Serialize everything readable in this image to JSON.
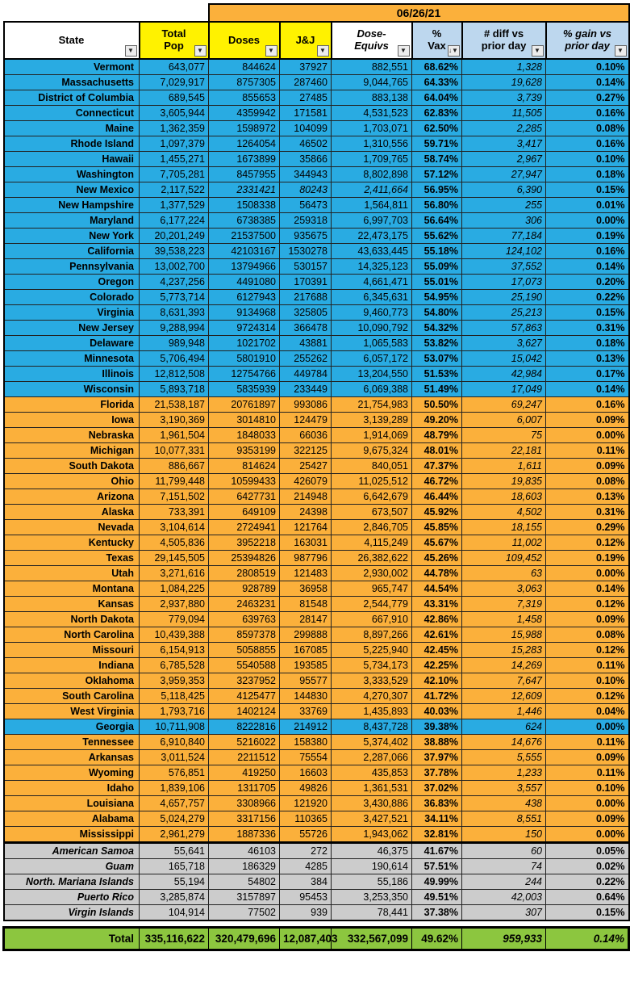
{
  "date_header": "06/26/21",
  "icons": {
    "filter": "▼",
    "filter_sorted": "↓▼"
  },
  "colors": {
    "blue": "#29ABE2",
    "orange": "#FBB03B",
    "band": "#FBB03B",
    "yellow": "#FFF200",
    "lightblue": "#BDD7EE",
    "gray": "#CCCCCC",
    "green": "#8CC63F"
  },
  "columns": [
    {
      "key": "state",
      "label": "State",
      "bg": "white"
    },
    {
      "key": "pop",
      "label": "Total\nPop",
      "bg": "yellow"
    },
    {
      "key": "doses",
      "label": "Doses",
      "bg": "yellow"
    },
    {
      "key": "jj",
      "label": "J&J",
      "bg": "yellow"
    },
    {
      "key": "equivs",
      "label": "Dose-\nEquivs",
      "bg": "white",
      "italic": true
    },
    {
      "key": "pct",
      "label": "%\nVax",
      "bg": "lightblue",
      "sorted": true
    },
    {
      "key": "diff",
      "label": "# diff vs\nprior day",
      "bg": "lightblue"
    },
    {
      "key": "gain",
      "label": "% gain vs\nprior day",
      "bg": "lightblue",
      "italic": true
    }
  ],
  "rows": [
    {
      "state": "Vermont",
      "pop": "643,077",
      "doses": "844624",
      "jj": "37927",
      "equivs": "882,551",
      "pct": "68.62%",
      "diff": "1,328",
      "gain": "0.10%",
      "group": "blue"
    },
    {
      "state": "Massachusetts",
      "pop": "7,029,917",
      "doses": "8757305",
      "jj": "287460",
      "equivs": "9,044,765",
      "pct": "64.33%",
      "diff": "19,628",
      "gain": "0.14%",
      "group": "blue"
    },
    {
      "state": "District of Columbia",
      "pop": "689,545",
      "doses": "855653",
      "jj": "27485",
      "equivs": "883,138",
      "pct": "64.04%",
      "diff": "3,739",
      "gain": "0.27%",
      "group": "blue"
    },
    {
      "state": "Connecticut",
      "pop": "3,605,944",
      "doses": "4359942",
      "jj": "171581",
      "equivs": "4,531,523",
      "pct": "62.83%",
      "diff": "11,505",
      "gain": "0.16%",
      "group": "blue"
    },
    {
      "state": "Maine",
      "pop": "1,362,359",
      "doses": "1598972",
      "jj": "104099",
      "equivs": "1,703,071",
      "pct": "62.50%",
      "diff": "2,285",
      "gain": "0.08%",
      "group": "blue"
    },
    {
      "state": "Rhode Island",
      "pop": "1,097,379",
      "doses": "1264054",
      "jj": "46502",
      "equivs": "1,310,556",
      "pct": "59.71%",
      "diff": "3,417",
      "gain": "0.16%",
      "group": "blue"
    },
    {
      "state": "Hawaii",
      "pop": "1,455,271",
      "doses": "1673899",
      "jj": "35866",
      "equivs": "1,709,765",
      "pct": "58.74%",
      "diff": "2,967",
      "gain": "0.10%",
      "group": "blue"
    },
    {
      "state": "Washington",
      "pop": "7,705,281",
      "doses": "8457955",
      "jj": "344943",
      "equivs": "8,802,898",
      "pct": "57.12%",
      "diff": "27,947",
      "gain": "0.18%",
      "group": "blue"
    },
    {
      "state": "New Mexico",
      "pop": "2,117,522",
      "doses": "2331421",
      "jj": "80243",
      "equivs": "2,411,664",
      "pct": "56.95%",
      "diff": "6,390",
      "gain": "0.15%",
      "group": "blue",
      "italic_values": true
    },
    {
      "state": "New Hampshire",
      "pop": "1,377,529",
      "doses": "1508338",
      "jj": "56473",
      "equivs": "1,564,811",
      "pct": "56.80%",
      "diff": "255",
      "gain": "0.01%",
      "group": "blue"
    },
    {
      "state": "Maryland",
      "pop": "6,177,224",
      "doses": "6738385",
      "jj": "259318",
      "equivs": "6,997,703",
      "pct": "56.64%",
      "diff": "306",
      "gain": "0.00%",
      "group": "blue"
    },
    {
      "state": "New York",
      "pop": "20,201,249",
      "doses": "21537500",
      "jj": "935675",
      "equivs": "22,473,175",
      "pct": "55.62%",
      "diff": "77,184",
      "gain": "0.19%",
      "group": "blue"
    },
    {
      "state": "California",
      "pop": "39,538,223",
      "doses": "42103167",
      "jj": "1530278",
      "equivs": "43,633,445",
      "pct": "55.18%",
      "diff": "124,102",
      "gain": "0.16%",
      "group": "blue"
    },
    {
      "state": "Pennsylvania",
      "pop": "13,002,700",
      "doses": "13794966",
      "jj": "530157",
      "equivs": "14,325,123",
      "pct": "55.09%",
      "diff": "37,552",
      "gain": "0.14%",
      "group": "blue"
    },
    {
      "state": "Oregon",
      "pop": "4,237,256",
      "doses": "4491080",
      "jj": "170391",
      "equivs": "4,661,471",
      "pct": "55.01%",
      "diff": "17,073",
      "gain": "0.20%",
      "group": "blue"
    },
    {
      "state": "Colorado",
      "pop": "5,773,714",
      "doses": "6127943",
      "jj": "217688",
      "equivs": "6,345,631",
      "pct": "54.95%",
      "diff": "25,190",
      "gain": "0.22%",
      "group": "blue"
    },
    {
      "state": "Virginia",
      "pop": "8,631,393",
      "doses": "9134968",
      "jj": "325805",
      "equivs": "9,460,773",
      "pct": "54.80%",
      "diff": "25,213",
      "gain": "0.15%",
      "group": "blue"
    },
    {
      "state": "New Jersey",
      "pop": "9,288,994",
      "doses": "9724314",
      "jj": "366478",
      "equivs": "10,090,792",
      "pct": "54.32%",
      "diff": "57,863",
      "gain": "0.31%",
      "group": "blue"
    },
    {
      "state": "Delaware",
      "pop": "989,948",
      "doses": "1021702",
      "jj": "43881",
      "equivs": "1,065,583",
      "pct": "53.82%",
      "diff": "3,627",
      "gain": "0.18%",
      "group": "blue"
    },
    {
      "state": "Minnesota",
      "pop": "5,706,494",
      "doses": "5801910",
      "jj": "255262",
      "equivs": "6,057,172",
      "pct": "53.07%",
      "diff": "15,042",
      "gain": "0.13%",
      "group": "blue"
    },
    {
      "state": "Illinois",
      "pop": "12,812,508",
      "doses": "12754766",
      "jj": "449784",
      "equivs": "13,204,550",
      "pct": "51.53%",
      "diff": "42,984",
      "gain": "0.17%",
      "group": "blue"
    },
    {
      "state": "Wisconsin",
      "pop": "5,893,718",
      "doses": "5835939",
      "jj": "233449",
      "equivs": "6,069,388",
      "pct": "51.49%",
      "diff": "17,049",
      "gain": "0.14%",
      "group": "blue"
    },
    {
      "state": "Florida",
      "pop": "21,538,187",
      "doses": "20761897",
      "jj": "993086",
      "equivs": "21,754,983",
      "pct": "50.50%",
      "diff": "69,247",
      "gain": "0.16%",
      "group": "orange"
    },
    {
      "state": "Iowa",
      "pop": "3,190,369",
      "doses": "3014810",
      "jj": "124479",
      "equivs": "3,139,289",
      "pct": "49.20%",
      "diff": "6,007",
      "gain": "0.09%",
      "group": "orange"
    },
    {
      "state": "Nebraska",
      "pop": "1,961,504",
      "doses": "1848033",
      "jj": "66036",
      "equivs": "1,914,069",
      "pct": "48.79%",
      "diff": "75",
      "gain": "0.00%",
      "group": "orange"
    },
    {
      "state": "Michigan",
      "pop": "10,077,331",
      "doses": "9353199",
      "jj": "322125",
      "equivs": "9,675,324",
      "pct": "48.01%",
      "diff": "22,181",
      "gain": "0.11%",
      "group": "orange"
    },
    {
      "state": "South Dakota",
      "pop": "886,667",
      "doses": "814624",
      "jj": "25427",
      "equivs": "840,051",
      "pct": "47.37%",
      "diff": "1,611",
      "gain": "0.09%",
      "group": "orange"
    },
    {
      "state": "Ohio",
      "pop": "11,799,448",
      "doses": "10599433",
      "jj": "426079",
      "equivs": "11,025,512",
      "pct": "46.72%",
      "diff": "19,835",
      "gain": "0.08%",
      "group": "orange"
    },
    {
      "state": "Arizona",
      "pop": "7,151,502",
      "doses": "6427731",
      "jj": "214948",
      "equivs": "6,642,679",
      "pct": "46.44%",
      "diff": "18,603",
      "gain": "0.13%",
      "group": "orange"
    },
    {
      "state": "Alaska",
      "pop": "733,391",
      "doses": "649109",
      "jj": "24398",
      "equivs": "673,507",
      "pct": "45.92%",
      "diff": "4,502",
      "gain": "0.31%",
      "group": "orange"
    },
    {
      "state": "Nevada",
      "pop": "3,104,614",
      "doses": "2724941",
      "jj": "121764",
      "equivs": "2,846,705",
      "pct": "45.85%",
      "diff": "18,155",
      "gain": "0.29%",
      "group": "orange"
    },
    {
      "state": "Kentucky",
      "pop": "4,505,836",
      "doses": "3952218",
      "jj": "163031",
      "equivs": "4,115,249",
      "pct": "45.67%",
      "diff": "11,002",
      "gain": "0.12%",
      "group": "orange"
    },
    {
      "state": "Texas",
      "pop": "29,145,505",
      "doses": "25394826",
      "jj": "987796",
      "equivs": "26,382,622",
      "pct": "45.26%",
      "diff": "109,452",
      "gain": "0.19%",
      "group": "orange"
    },
    {
      "state": "Utah",
      "pop": "3,271,616",
      "doses": "2808519",
      "jj": "121483",
      "equivs": "2,930,002",
      "pct": "44.78%",
      "diff": "63",
      "gain": "0.00%",
      "group": "orange"
    },
    {
      "state": "Montana",
      "pop": "1,084,225",
      "doses": "928789",
      "jj": "36958",
      "equivs": "965,747",
      "pct": "44.54%",
      "diff": "3,063",
      "gain": "0.14%",
      "group": "orange"
    },
    {
      "state": "Kansas",
      "pop": "2,937,880",
      "doses": "2463231",
      "jj": "81548",
      "equivs": "2,544,779",
      "pct": "43.31%",
      "diff": "7,319",
      "gain": "0.12%",
      "group": "orange"
    },
    {
      "state": "North Dakota",
      "pop": "779,094",
      "doses": "639763",
      "jj": "28147",
      "equivs": "667,910",
      "pct": "42.86%",
      "diff": "1,458",
      "gain": "0.09%",
      "group": "orange"
    },
    {
      "state": "North Carolina",
      "pop": "10,439,388",
      "doses": "8597378",
      "jj": "299888",
      "equivs": "8,897,266",
      "pct": "42.61%",
      "diff": "15,988",
      "gain": "0.08%",
      "group": "orange"
    },
    {
      "state": "Missouri",
      "pop": "6,154,913",
      "doses": "5058855",
      "jj": "167085",
      "equivs": "5,225,940",
      "pct": "42.45%",
      "diff": "15,283",
      "gain": "0.12%",
      "group": "orange"
    },
    {
      "state": "Indiana",
      "pop": "6,785,528",
      "doses": "5540588",
      "jj": "193585",
      "equivs": "5,734,173",
      "pct": "42.25%",
      "diff": "14,269",
      "gain": "0.11%",
      "group": "orange"
    },
    {
      "state": "Oklahoma",
      "pop": "3,959,353",
      "doses": "3237952",
      "jj": "95577",
      "equivs": "3,333,529",
      "pct": "42.10%",
      "diff": "7,647",
      "gain": "0.10%",
      "group": "orange"
    },
    {
      "state": "South Carolina",
      "pop": "5,118,425",
      "doses": "4125477",
      "jj": "144830",
      "equivs": "4,270,307",
      "pct": "41.72%",
      "diff": "12,609",
      "gain": "0.12%",
      "group": "orange"
    },
    {
      "state": "West Virginia",
      "pop": "1,793,716",
      "doses": "1402124",
      "jj": "33769",
      "equivs": "1,435,893",
      "pct": "40.03%",
      "diff": "1,446",
      "gain": "0.04%",
      "group": "orange"
    },
    {
      "state": "Georgia",
      "pop": "10,711,908",
      "doses": "8222816",
      "jj": "214912",
      "equivs": "8,437,728",
      "pct": "39.38%",
      "diff": "624",
      "gain": "0.00%",
      "group": "blue"
    },
    {
      "state": "Tennessee",
      "pop": "6,910,840",
      "doses": "5216022",
      "jj": "158380",
      "equivs": "5,374,402",
      "pct": "38.88%",
      "diff": "14,676",
      "gain": "0.11%",
      "group": "orange"
    },
    {
      "state": "Arkansas",
      "pop": "3,011,524",
      "doses": "2211512",
      "jj": "75554",
      "equivs": "2,287,066",
      "pct": "37.97%",
      "diff": "5,555",
      "gain": "0.09%",
      "group": "orange"
    },
    {
      "state": "Wyoming",
      "pop": "576,851",
      "doses": "419250",
      "jj": "16603",
      "equivs": "435,853",
      "pct": "37.78%",
      "diff": "1,233",
      "gain": "0.11%",
      "group": "orange"
    },
    {
      "state": "Idaho",
      "pop": "1,839,106",
      "doses": "1311705",
      "jj": "49826",
      "equivs": "1,361,531",
      "pct": "37.02%",
      "diff": "3,557",
      "gain": "0.10%",
      "group": "orange"
    },
    {
      "state": "Louisiana",
      "pop": "4,657,757",
      "doses": "3308966",
      "jj": "121920",
      "equivs": "3,430,886",
      "pct": "36.83%",
      "diff": "438",
      "gain": "0.00%",
      "group": "orange"
    },
    {
      "state": "Alabama",
      "pop": "5,024,279",
      "doses": "3317156",
      "jj": "110365",
      "equivs": "3,427,521",
      "pct": "34.11%",
      "diff": "8,551",
      "gain": "0.09%",
      "group": "orange"
    },
    {
      "state": "Mississippi",
      "pop": "2,961,279",
      "doses": "1887336",
      "jj": "55726",
      "equivs": "1,943,062",
      "pct": "32.81%",
      "diff": "150",
      "gain": "0.00%",
      "group": "orange"
    },
    {
      "state": "American Samoa",
      "pop": "55,641",
      "doses": "46103",
      "jj": "272",
      "equivs": "46,375",
      "pct": "41.67%",
      "diff": "60",
      "gain": "0.05%",
      "group": "territory"
    },
    {
      "state": "Guam",
      "pop": "165,718",
      "doses": "186329",
      "jj": "4285",
      "equivs": "190,614",
      "pct": "57.51%",
      "diff": "74",
      "gain": "0.02%",
      "group": "territory"
    },
    {
      "state": "North. Mariana Islands",
      "pop": "55,194",
      "doses": "54802",
      "jj": "384",
      "equivs": "55,186",
      "pct": "49.99%",
      "diff": "244",
      "gain": "0.22%",
      "group": "territory"
    },
    {
      "state": "Puerto Rico",
      "pop": "3,285,874",
      "doses": "3157897",
      "jj": "95453",
      "equivs": "3,253,350",
      "pct": "49.51%",
      "diff": "42,003",
      "gain": "0.64%",
      "group": "territory"
    },
    {
      "state": "Virgin Islands",
      "pop": "104,914",
      "doses": "77502",
      "jj": "939",
      "equivs": "78,441",
      "pct": "37.38%",
      "diff": "307",
      "gain": "0.15%",
      "group": "territory"
    }
  ],
  "total": {
    "state": "Total",
    "pop": "335,116,622",
    "doses": "320,479,696",
    "jj": "12,087,403",
    "equivs": "332,567,099",
    "pct": "49.62%",
    "diff": "959,933",
    "gain": "0.14%"
  }
}
